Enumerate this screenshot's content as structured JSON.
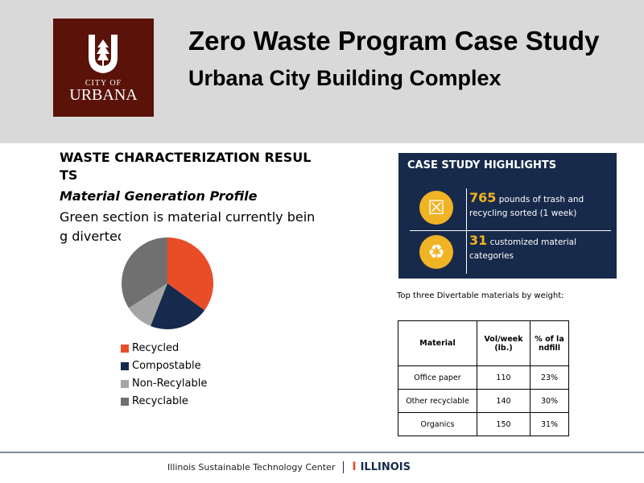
{
  "header": {
    "logo_line1": "CITY OF",
    "logo_line2": "URBANA",
    "title": "Zero Waste Program Case Study",
    "subtitle": "Urbana City Building Complex"
  },
  "section": {
    "heading": "WASTE CHARACTERIZATION RESULTS",
    "subheading": "Material Generation Profile",
    "description": "Green section is material currently being diverted from landfill"
  },
  "chart_data": {
    "type": "pie",
    "categories": [
      "Recycled",
      "Compostable",
      "Non-Recylable",
      "Recyclable"
    ],
    "values": [
      35,
      21,
      10,
      34
    ],
    "colors": [
      "#e84d27",
      "#152a4c",
      "#a5a5a5",
      "#707070"
    ],
    "legend": "bottom"
  },
  "highlights": {
    "title": "CASE STUDY HIGHLIGHTS",
    "items": [
      {
        "icon": "trash-can-icon",
        "number": "765",
        "text": "pounds of trash and recycling sorted (1 week)"
      },
      {
        "icon": "recycle-icon",
        "number": "31",
        "text": "customized material categories"
      }
    ],
    "accent": "#f0b323",
    "bg": "#172a4b"
  },
  "table": {
    "caption": "Top three Divertable materials by weight:",
    "headers": [
      "Material",
      "Vol/week (lb.)",
      "% of landfill"
    ],
    "rows": [
      [
        "Office paper",
        "110",
        "23%"
      ],
      [
        "Other recyclable",
        "140",
        "30%"
      ],
      [
        "Organics",
        "150",
        "31%"
      ]
    ]
  },
  "footer": {
    "org": "Illinois Sustainable Technology Center",
    "brand": "ILLINOIS",
    "brand_mark": "I"
  }
}
